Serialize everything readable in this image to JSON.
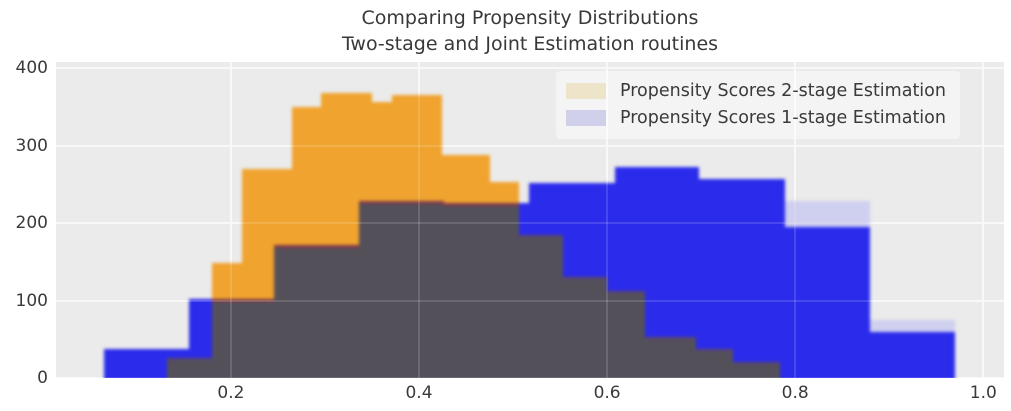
{
  "figure": {
    "title_line1": "Comparing Propensity Distributions",
    "title_line2": "Two-stage and Joint Estimation routines"
  },
  "legend": {
    "position": "upper right",
    "items": [
      {
        "label": "Propensity Scores 2-stage Estimation",
        "swatch_color": "#eee4c9"
      },
      {
        "label": "Propensity Scores 1-stage Estimation",
        "swatch_color": "#d0d0ea"
      }
    ]
  },
  "axes": {
    "background": "#ebebeb",
    "grid_color": "#f7f7f7",
    "text_color": "#3a3a3a",
    "x_tick_labels": [
      "0.2",
      "0.4",
      "0.6",
      "0.8",
      "1.0"
    ],
    "y_tick_labels": [
      "0",
      "100",
      "200",
      "300",
      "400"
    ]
  },
  "chart_data": {
    "type": "bar",
    "subtype": "overlaid-histograms",
    "title": "Comparing Propensity Distributions / Two-stage and Joint Estimation routines",
    "xlabel": "",
    "ylabel": "",
    "xlim": [
      0.014,
      1.022
    ],
    "ylim": [
      0,
      408
    ],
    "x_ticks": [
      0.2,
      0.4,
      0.6,
      0.8,
      1.0
    ],
    "y_ticks": [
      0,
      100,
      200,
      300,
      400
    ],
    "grid": true,
    "legend_position": "upper right",
    "series": [
      {
        "name": "Propensity Scores 2-stage Estimation",
        "color": "#f0a32e",
        "bars": [
          [
            0.132,
            0.18,
            26
          ],
          [
            0.18,
            0.212,
            148
          ],
          [
            0.212,
            0.265,
            270
          ],
          [
            0.265,
            0.296,
            350
          ],
          [
            0.296,
            0.35,
            368
          ],
          [
            0.35,
            0.371,
            356
          ],
          [
            0.371,
            0.424,
            365
          ],
          [
            0.424,
            0.475,
            288
          ],
          [
            0.475,
            0.506,
            253
          ],
          [
            0.506,
            0.553,
            185
          ],
          [
            0.553,
            0.6,
            130
          ],
          [
            0.6,
            0.64,
            112
          ],
          [
            0.64,
            0.694,
            53
          ],
          [
            0.694,
            0.734,
            38
          ],
          [
            0.734,
            0.784,
            21
          ]
        ]
      },
      {
        "name": "Propensity Scores 1-stage Estimation",
        "color": "#2b2bec",
        "bin_edges": [
          0.065,
          0.155,
          0.246,
          0.336,
          0.427,
          0.517,
          0.608,
          0.698,
          0.789,
          0.879,
          0.97
        ],
        "counts": [
          38,
          102,
          172,
          229,
          226,
          252,
          272,
          257,
          195,
          60
        ]
      }
    ],
    "overlap_color": "#54505a",
    "overlap_edge_under_orange": "rgba(158,42,66,0.6)",
    "overlap_edge_under_blue": "rgba(96,60,130,0.35)",
    "cap_color": "#cfcfef",
    "light_caps": [
      {
        "from": 0.789,
        "to": 0.879,
        "y0": 195,
        "y1": 228
      },
      {
        "from": 0.879,
        "to": 0.97,
        "y0": 60,
        "y1": 75
      }
    ]
  }
}
